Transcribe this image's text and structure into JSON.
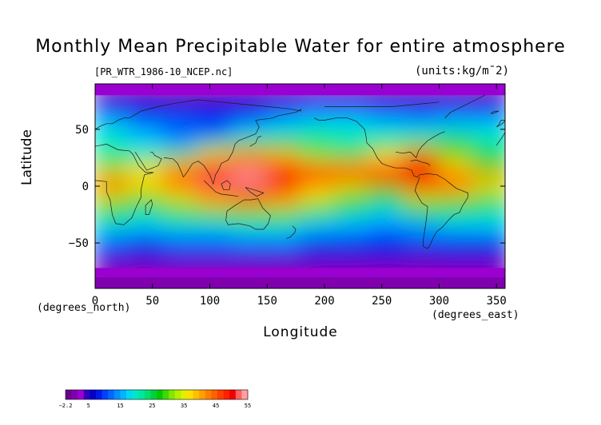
{
  "chart_data": {
    "type": "heatmap",
    "title": "Monthly Mean Precipitable Water for entire atmosphere",
    "subtitle_left": "[PR_WTR_1986-10_NCEP.nc]",
    "subtitle_right": "(units:kg/m¯2)",
    "xlabel": "Longitude",
    "ylabel": "Latitude",
    "x_unit_label": "(degrees_east)",
    "y_unit_label": "(degrees_north)",
    "xlim": [
      0,
      357.5
    ],
    "ylim": [
      -90,
      90
    ],
    "x_ticks": [
      0,
      50,
      100,
      150,
      200,
      250,
      300,
      350
    ],
    "y_ticks": [
      50,
      0,
      -50
    ],
    "y_tick_labels": [
      "50",
      "0",
      "−50"
    ],
    "colorbar": {
      "min": -2.2,
      "max": 55,
      "tick_values": [
        -2.2,
        5,
        15,
        25,
        35,
        45,
        55
      ],
      "tick_labels": [
        "−2.2",
        "5",
        "15",
        "25",
        "35",
        "45",
        "55"
      ],
      "colors": [
        "#6a0090",
        "#8000b0",
        "#9a00d0",
        "#3000c0",
        "#0000c8",
        "#0018e8",
        "#0040ff",
        "#0068ff",
        "#0090ff",
        "#00b4ff",
        "#00d8f0",
        "#00e8c8",
        "#00e8a0",
        "#00e070",
        "#00d040",
        "#00c800",
        "#40d800",
        "#80e800",
        "#b4f000",
        "#e0f000",
        "#ffe000",
        "#ffc000",
        "#ffa000",
        "#ff8000",
        "#ff6000",
        "#ff4000",
        "#ff2000",
        "#f00000",
        "#ff6060",
        "#ffa0a0"
      ]
    },
    "field": {
      "lat_centers": [
        85,
        75,
        65,
        55,
        45,
        35,
        25,
        15,
        5,
        -5,
        -15,
        -25,
        -35,
        -45,
        -55,
        -65,
        -75,
        -85
      ],
      "lon_centers": [
        15,
        45,
        75,
        105,
        135,
        165,
        195,
        225,
        255,
        285,
        315,
        345
      ],
      "values": [
        [
          3,
          3,
          3,
          3,
          3,
          3,
          3,
          3,
          3,
          3,
          3,
          3
        ],
        [
          6,
          7,
          5,
          5,
          6,
          7,
          8,
          8,
          7,
          7,
          6,
          6
        ],
        [
          10,
          9,
          8,
          8,
          9,
          11,
          12,
          12,
          11,
          10,
          11,
          11
        ],
        [
          15,
          13,
          12,
          11,
          13,
          16,
          17,
          18,
          16,
          14,
          15,
          15
        ],
        [
          19,
          16,
          11,
          10,
          18,
          20,
          21,
          20,
          19,
          20,
          21,
          20
        ],
        [
          20,
          18,
          16,
          24,
          30,
          27,
          23,
          22,
          24,
          30,
          27,
          22
        ],
        [
          24,
          21,
          30,
          38,
          42,
          38,
          31,
          30,
          36,
          45,
          32,
          26
        ],
        [
          32,
          35,
          40,
          50,
          52,
          48,
          44,
          42,
          45,
          50,
          38,
          30
        ],
        [
          42,
          38,
          45,
          52,
          55,
          50,
          45,
          44,
          46,
          50,
          45,
          40
        ],
        [
          40,
          35,
          40,
          46,
          50,
          45,
          38,
          33,
          28,
          42,
          40,
          34
        ],
        [
          32,
          28,
          34,
          38,
          42,
          40,
          34,
          28,
          24,
          32,
          30,
          26
        ],
        [
          26,
          22,
          26,
          28,
          30,
          30,
          25,
          22,
          18,
          26,
          24,
          21
        ],
        [
          20,
          17,
          19,
          20,
          22,
          22,
          18,
          16,
          14,
          16,
          18,
          17
        ],
        [
          14,
          13,
          14,
          14,
          16,
          15,
          13,
          12,
          11,
          12,
          12,
          13
        ],
        [
          10,
          9,
          10,
          10,
          11,
          11,
          9,
          9,
          8,
          9,
          9,
          9
        ],
        [
          6,
          6,
          6,
          7,
          7,
          6,
          6,
          6,
          6,
          5,
          6,
          6
        ],
        [
          3,
          3,
          2,
          2,
          2,
          3,
          3,
          3,
          2,
          3,
          3,
          3
        ],
        [
          0,
          0,
          0,
          0,
          0,
          0,
          0,
          0,
          0,
          0,
          0,
          0
        ]
      ]
    },
    "grid": false,
    "legend": "bottom-left"
  }
}
